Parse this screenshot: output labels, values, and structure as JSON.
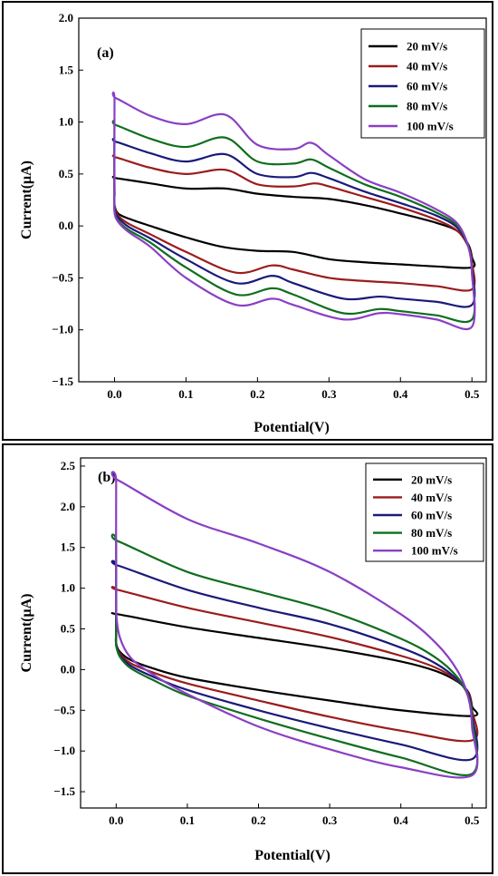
{
  "chart_data": [
    {
      "panel_label": "(a)",
      "type": "line",
      "xlabel": "Potential(V)",
      "ylabel": "Current(μA)",
      "xlim": [
        -0.05,
        0.52
      ],
      "ylim": [
        -1.5,
        2.0
      ],
      "xticks": [
        0.0,
        0.1,
        0.2,
        0.3,
        0.4,
        0.5
      ],
      "yticks": [
        -1.5,
        -1.0,
        -0.5,
        0.0,
        0.5,
        1.0,
        1.5,
        2.0
      ],
      "xtick_labels": [
        "0.0",
        "0.1",
        "0.2",
        "0.3",
        "0.4",
        "0.5"
      ],
      "ytick_labels": [
        "−1.5",
        "−1.0",
        "−0.5",
        "0.0",
        "0.5",
        "1.0",
        "1.5",
        "2.0"
      ],
      "legend_position": "top-right",
      "series": [
        {
          "name": "20 mV/s",
          "color": "#000000",
          "x": [
            0.0,
            0.0,
            0.002,
            0.05,
            0.1,
            0.155,
            0.2,
            0.25,
            0.3,
            0.35,
            0.4,
            0.45,
            0.48,
            0.495,
            0.5,
            0.5,
            0.45,
            0.4,
            0.35,
            0.3,
            0.25,
            0.2,
            0.15,
            0.1,
            0.05,
            0.02,
            0.005,
            0.0,
            0.0
          ],
          "y": [
            0.3,
            0.46,
            0.46,
            0.41,
            0.36,
            0.36,
            0.31,
            0.28,
            0.26,
            0.2,
            0.12,
            0.03,
            -0.05,
            -0.18,
            -0.3,
            -0.4,
            -0.39,
            -0.37,
            -0.35,
            -0.32,
            -0.25,
            -0.24,
            -0.2,
            -0.11,
            0.0,
            0.07,
            0.12,
            0.2,
            0.3
          ]
        },
        {
          "name": "40 mV/s",
          "color": "#9b1c1c",
          "x": [
            0.0,
            0.0,
            0.002,
            0.05,
            0.1,
            0.155,
            0.2,
            0.25,
            0.28,
            0.3,
            0.35,
            0.4,
            0.45,
            0.48,
            0.495,
            0.5,
            0.5,
            0.45,
            0.4,
            0.35,
            0.3,
            0.25,
            0.22,
            0.17,
            0.1,
            0.05,
            0.02,
            0.005,
            0.0,
            0.0
          ],
          "y": [
            0.3,
            0.64,
            0.66,
            0.56,
            0.5,
            0.54,
            0.4,
            0.38,
            0.41,
            0.38,
            0.28,
            0.18,
            0.06,
            -0.05,
            -0.2,
            -0.35,
            -0.61,
            -0.58,
            -0.55,
            -0.53,
            -0.5,
            -0.42,
            -0.38,
            -0.45,
            -0.25,
            -0.08,
            0.02,
            0.1,
            0.2,
            0.3
          ]
        },
        {
          "name": "60 mV/s",
          "color": "#1a1a7a",
          "x": [
            0.0,
            0.0,
            0.002,
            0.05,
            0.1,
            0.155,
            0.2,
            0.25,
            0.275,
            0.3,
            0.35,
            0.4,
            0.45,
            0.48,
            0.495,
            0.5,
            0.5,
            0.45,
            0.4,
            0.37,
            0.32,
            0.25,
            0.22,
            0.17,
            0.1,
            0.05,
            0.02,
            0.005,
            0.0,
            0.0
          ],
          "y": [
            0.3,
            0.79,
            0.81,
            0.7,
            0.62,
            0.69,
            0.5,
            0.47,
            0.51,
            0.46,
            0.33,
            0.22,
            0.1,
            -0.02,
            -0.2,
            -0.4,
            -0.76,
            -0.73,
            -0.7,
            -0.68,
            -0.7,
            -0.55,
            -0.48,
            -0.55,
            -0.32,
            -0.12,
            -0.01,
            0.08,
            0.17,
            0.3
          ]
        },
        {
          "name": "80 mV/s",
          "color": "#0f6e1e",
          "x": [
            0.0,
            0.0,
            0.002,
            0.05,
            0.1,
            0.155,
            0.2,
            0.25,
            0.275,
            0.3,
            0.35,
            0.4,
            0.45,
            0.48,
            0.495,
            0.5,
            0.5,
            0.45,
            0.4,
            0.37,
            0.32,
            0.25,
            0.22,
            0.17,
            0.1,
            0.05,
            0.02,
            0.005,
            0.0,
            0.0
          ],
          "y": [
            0.3,
            0.95,
            0.97,
            0.84,
            0.76,
            0.85,
            0.62,
            0.6,
            0.64,
            0.56,
            0.4,
            0.28,
            0.13,
            0.0,
            -0.2,
            -0.45,
            -0.9,
            -0.86,
            -0.82,
            -0.8,
            -0.84,
            -0.66,
            -0.6,
            -0.66,
            -0.4,
            -0.16,
            -0.04,
            0.05,
            0.15,
            0.3
          ]
        },
        {
          "name": "100 mV/s",
          "color": "#8a3fc4",
          "x": [
            0.0,
            0.0,
            0.002,
            0.05,
            0.1,
            0.155,
            0.2,
            0.25,
            0.275,
            0.3,
            0.35,
            0.4,
            0.45,
            0.48,
            0.495,
            0.5,
            0.5,
            0.45,
            0.4,
            0.37,
            0.32,
            0.25,
            0.22,
            0.17,
            0.1,
            0.05,
            0.02,
            0.005,
            0.0,
            0.0
          ],
          "y": [
            0.3,
            1.2,
            1.23,
            1.06,
            0.98,
            1.07,
            0.78,
            0.74,
            0.8,
            0.68,
            0.45,
            0.32,
            0.16,
            0.02,
            -0.2,
            -0.45,
            -0.97,
            -0.9,
            -0.85,
            -0.84,
            -0.9,
            -0.76,
            -0.7,
            -0.76,
            -0.5,
            -0.2,
            -0.06,
            0.04,
            0.13,
            0.3
          ]
        }
      ]
    },
    {
      "panel_label": "(b)",
      "type": "line",
      "xlabel": "Potential(V)",
      "ylabel": "Current(μA)",
      "xlim": [
        -0.05,
        0.52
      ],
      "ylim": [
        -1.7,
        2.6
      ],
      "xticks": [
        0.0,
        0.1,
        0.2,
        0.3,
        0.4,
        0.5
      ],
      "yticks": [
        -1.5,
        -1.0,
        -0.5,
        0.0,
        0.5,
        1.0,
        1.5,
        2.0,
        2.5
      ],
      "xtick_labels": [
        "0.0",
        "0.1",
        "0.2",
        "0.3",
        "0.4",
        "0.5"
      ],
      "ytick_labels": [
        "−1.5",
        "−1.0",
        "−0.5",
        "0.0",
        "0.5",
        "1.0",
        "1.5",
        "2.0",
        "2.5"
      ],
      "legend_position": "top-right",
      "series": [
        {
          "name": "20 mV/s",
          "color": "#000000",
          "x": [
            0.0,
            0.0,
            0.002,
            0.1,
            0.2,
            0.3,
            0.4,
            0.45,
            0.48,
            0.495,
            0.5,
            0.5,
            0.4,
            0.3,
            0.2,
            0.1,
            0.05,
            0.02,
            0.005,
            0.0,
            0.0
          ],
          "y": [
            0.45,
            0.66,
            0.68,
            0.52,
            0.39,
            0.26,
            0.1,
            -0.02,
            -0.15,
            -0.28,
            -0.45,
            -0.57,
            -0.5,
            -0.38,
            -0.25,
            -0.1,
            0.02,
            0.12,
            0.22,
            0.32,
            0.45
          ]
        },
        {
          "name": "40 mV/s",
          "color": "#9b1c1c",
          "x": [
            0.0,
            0.0,
            0.002,
            0.1,
            0.2,
            0.3,
            0.4,
            0.45,
            0.48,
            0.495,
            0.5,
            0.5,
            0.4,
            0.3,
            0.2,
            0.1,
            0.05,
            0.02,
            0.005,
            0.0,
            0.0
          ],
          "y": [
            0.45,
            0.96,
            0.98,
            0.76,
            0.58,
            0.4,
            0.17,
            0.02,
            -0.14,
            -0.3,
            -0.5,
            -0.87,
            -0.75,
            -0.58,
            -0.38,
            -0.17,
            -0.03,
            0.08,
            0.2,
            0.3,
            0.45
          ]
        },
        {
          "name": "60 mV/s",
          "color": "#1a1a7a",
          "x": [
            0.0,
            0.0,
            0.002,
            0.1,
            0.2,
            0.3,
            0.4,
            0.45,
            0.48,
            0.495,
            0.5,
            0.5,
            0.4,
            0.3,
            0.2,
            0.1,
            0.05,
            0.02,
            0.005,
            0.0,
            0.0
          ],
          "y": [
            0.45,
            1.25,
            1.28,
            0.98,
            0.76,
            0.56,
            0.27,
            0.07,
            -0.13,
            -0.32,
            -0.55,
            -1.1,
            -0.92,
            -0.72,
            -0.5,
            -0.25,
            -0.08,
            0.05,
            0.18,
            0.3,
            0.45
          ]
        },
        {
          "name": "80 mV/s",
          "color": "#0f6e1e",
          "x": [
            0.0,
            0.0,
            0.002,
            0.1,
            0.2,
            0.3,
            0.4,
            0.45,
            0.48,
            0.495,
            0.5,
            0.5,
            0.4,
            0.3,
            0.2,
            0.1,
            0.05,
            0.02,
            0.005,
            0.0,
            0.0
          ],
          "y": [
            0.45,
            1.55,
            1.58,
            1.2,
            0.96,
            0.72,
            0.38,
            0.14,
            -0.1,
            -0.34,
            -0.6,
            -1.28,
            -1.08,
            -0.85,
            -0.6,
            -0.32,
            -0.12,
            0.02,
            0.16,
            0.3,
            0.45
          ]
        },
        {
          "name": "100 mV/s",
          "color": "#8a3fc4",
          "x": [
            0.0,
            0.0,
            0.002,
            0.1,
            0.2,
            0.3,
            0.4,
            0.45,
            0.48,
            0.495,
            0.5,
            0.5,
            0.4,
            0.3,
            0.2,
            0.1,
            0.05,
            0.02,
            0.005,
            0.0,
            0.0
          ],
          "y": [
            1.0,
            2.3,
            2.33,
            1.85,
            1.55,
            1.2,
            0.68,
            0.32,
            -0.02,
            -0.35,
            -0.7,
            -1.3,
            -1.2,
            -0.98,
            -0.7,
            -0.3,
            -0.05,
            0.15,
            0.4,
            0.7,
            1.0
          ]
        }
      ]
    }
  ]
}
